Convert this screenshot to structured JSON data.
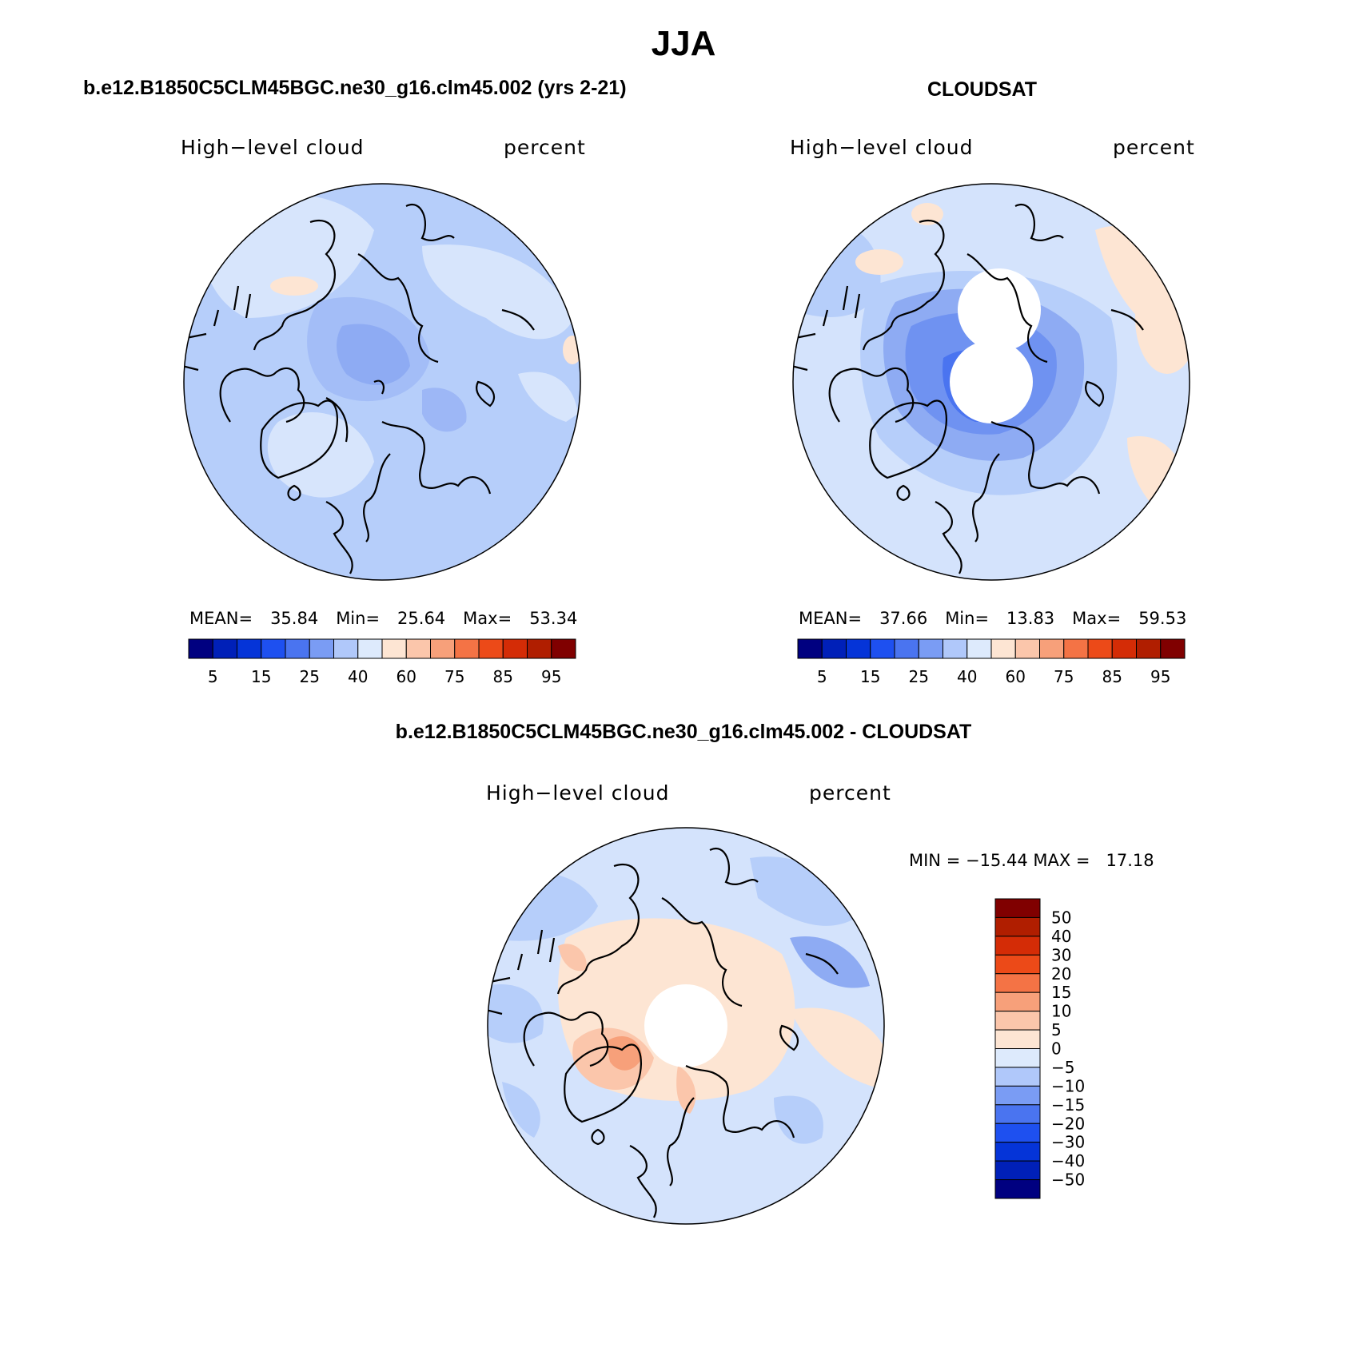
{
  "figure_title": "JJA",
  "colors": {
    "seq": [
      "#000080",
      "#0020b8",
      "#0534d8",
      "#1e50f0",
      "#4a74f0",
      "#7a9cf4",
      "#b0c8fa",
      "#ddeafc",
      "#fde5d3",
      "#fbc6ab",
      "#f7a07a",
      "#f47345",
      "#ec4a18",
      "#d42c06",
      "#b01e00",
      "#800000"
    ],
    "diff": [
      "#000080",
      "#0020b8",
      "#0534d8",
      "#1e50f0",
      "#4a74f0",
      "#7a9cf4",
      "#b0c8fa",
      "#ddeafc",
      "#fde5d3",
      "#fbc6ab",
      "#f7a07a",
      "#f47345",
      "#ec4a18",
      "#d42c06",
      "#b01e00",
      "#800000"
    ]
  },
  "panels": [
    {
      "title": "b.e12.B1850C5CLM45BGC.ne30_g16.clm45.002 (yrs 2-21)",
      "left_label": "High−level cloud",
      "right_label": "percent",
      "stats": {
        "mean_label": "MEAN=",
        "mean": "35.84",
        "min_label": "Min=",
        "min": "25.64",
        "max_label": "Max=",
        "max": "53.34"
      },
      "colorbar_ticks": [
        "5",
        "15",
        "25",
        "40",
        "60",
        "75",
        "85",
        "95"
      ]
    },
    {
      "title": "CLOUDSAT",
      "left_label": "High−level cloud",
      "right_label": "percent",
      "stats": {
        "mean_label": "MEAN=",
        "mean": "37.66",
        "min_label": "Min=",
        "min": "13.83",
        "max_label": "Max=",
        "max": "59.53"
      },
      "colorbar_ticks": [
        "5",
        "15",
        "25",
        "40",
        "60",
        "75",
        "85",
        "95"
      ]
    }
  ],
  "diff_panel": {
    "title": "b.e12.B1850C5CLM45BGC.ne30_g16.clm45.002 - CLOUDSAT",
    "left_label": "High−level cloud",
    "right_label": "percent",
    "minmax": "MIN = −15.44 MAX =   17.18",
    "colorbar_ticks": [
      "50",
      "40",
      "30",
      "20",
      "15",
      "10",
      "5",
      "0",
      "−5",
      "−10",
      "−15",
      "−20",
      "−30",
      "−40",
      "−50"
    ]
  }
}
